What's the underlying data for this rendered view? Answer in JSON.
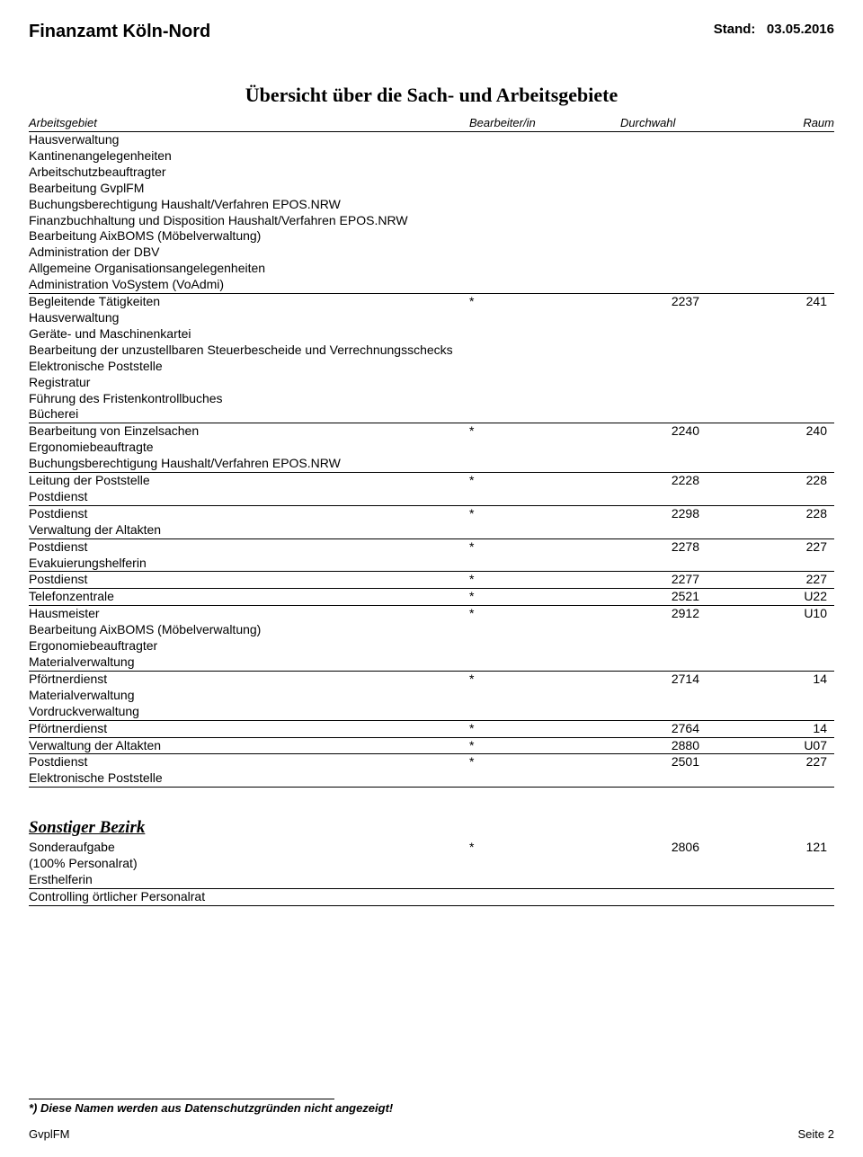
{
  "header": {
    "org": "Finanzamt Köln-Nord",
    "stand_label": "Stand:",
    "stand_date": "03.05.2016"
  },
  "title": "Übersicht über die Sach- und Arbeitsgebiete",
  "columns": {
    "arbeitsgebiet": "Arbeitsgebiet",
    "bearbeiter": "Bearbeiter/in",
    "durchwahl": "Durchwahl",
    "raum": "Raum"
  },
  "groups": [
    {
      "rows": [
        {
          "label": "Hausverwaltung"
        },
        {
          "label": "Kantinenangelegenheiten"
        },
        {
          "label": "Arbeitschutzbeauftragter"
        },
        {
          "label": "Bearbeitung GvplFM"
        },
        {
          "label": "Buchungsberechtigung Haushalt/Verfahren EPOS.NRW"
        },
        {
          "label": "Finanzbuchhaltung und Disposition Haushalt/Verfahren EPOS.NRW"
        },
        {
          "label": "Bearbeitung AixBOMS (Möbelverwaltung)"
        },
        {
          "label": "Administration der DBV"
        },
        {
          "label": "Allgemeine Organisationsangelegenheiten"
        },
        {
          "label": "Administration VoSystem (VoAdmi)"
        }
      ]
    },
    {
      "rows": [
        {
          "label": "Begleitende Tätigkeiten",
          "bearbeiter": "*",
          "durchwahl": "2237",
          "raum": "241"
        },
        {
          "label": "Hausverwaltung"
        },
        {
          "label": "Geräte- und Maschinenkartei"
        },
        {
          "label": "Bearbeitung der unzustellbaren Steuerbescheide und Verrechnungsschecks"
        },
        {
          "label": "Elektronische Poststelle"
        },
        {
          "label": "Registratur"
        },
        {
          "label": "Führung des Fristenkontrollbuches"
        },
        {
          "label": "Bücherei"
        }
      ]
    },
    {
      "rows": [
        {
          "label": "Bearbeitung von Einzelsachen",
          "bearbeiter": "*",
          "durchwahl": "2240",
          "raum": "240"
        },
        {
          "label": "Ergonomiebeauftragte"
        },
        {
          "label": "Buchungsberechtigung Haushalt/Verfahren EPOS.NRW"
        }
      ]
    },
    {
      "rows": [
        {
          "label": "Leitung der Poststelle",
          "bearbeiter": "*",
          "durchwahl": "2228",
          "raum": "228"
        },
        {
          "label": "Postdienst"
        }
      ]
    },
    {
      "rows": [
        {
          "label": "Postdienst",
          "bearbeiter": "*",
          "durchwahl": "2298",
          "raum": "228"
        },
        {
          "label": "Verwaltung der Altakten"
        }
      ]
    },
    {
      "rows": [
        {
          "label": "Postdienst",
          "bearbeiter": "*",
          "durchwahl": "2278",
          "raum": "227"
        },
        {
          "label": "Evakuierungshelferin"
        }
      ]
    },
    {
      "rows": [
        {
          "label": "Postdienst",
          "bearbeiter": "*",
          "durchwahl": "2277",
          "raum": "227"
        }
      ]
    },
    {
      "rows": [
        {
          "label": "Telefonzentrale",
          "bearbeiter": "*",
          "durchwahl": "2521",
          "raum": "U22"
        }
      ]
    },
    {
      "rows": [
        {
          "label": "Hausmeister",
          "bearbeiter": "*",
          "durchwahl": "2912",
          "raum": "U10"
        },
        {
          "label": "Bearbeitung AixBOMS (Möbelverwaltung)"
        },
        {
          "label": "Ergonomiebeauftragter"
        },
        {
          "label": "Materialverwaltung"
        }
      ]
    },
    {
      "rows": [
        {
          "label": "Pförtnerdienst",
          "bearbeiter": "*",
          "durchwahl": "2714",
          "raum": "14"
        },
        {
          "label": "Materialverwaltung"
        },
        {
          "label": "Vordruckverwaltung"
        }
      ]
    },
    {
      "rows": [
        {
          "label": "Pförtnerdienst",
          "bearbeiter": "*",
          "durchwahl": "2764",
          "raum": "14"
        }
      ]
    },
    {
      "rows": [
        {
          "label": "Verwaltung der Altakten",
          "bearbeiter": "*",
          "durchwahl": "2880",
          "raum": "U07"
        }
      ]
    },
    {
      "rows": [
        {
          "label": "Postdienst",
          "bearbeiter": "*",
          "durchwahl": "2501",
          "raum": "227"
        },
        {
          "label": "Elektronische Poststelle"
        }
      ]
    }
  ],
  "section2": {
    "title": "Sonstiger Bezirk",
    "groups": [
      {
        "rows": [
          {
            "label": "Sonderaufgabe",
            "bearbeiter": "*",
            "durchwahl": "2806",
            "raum": "121"
          },
          {
            "label": "(100% Personalrat)"
          },
          {
            "label": "Ersthelferin"
          }
        ]
      },
      {
        "rows": [
          {
            "label": "Controlling örtlicher Personalrat"
          }
        ]
      }
    ]
  },
  "footer": {
    "note": "*) Diese Namen werden aus Datenschutzgründen nicht angezeigt!",
    "left": "GvplFM",
    "right": "Seite 2"
  }
}
